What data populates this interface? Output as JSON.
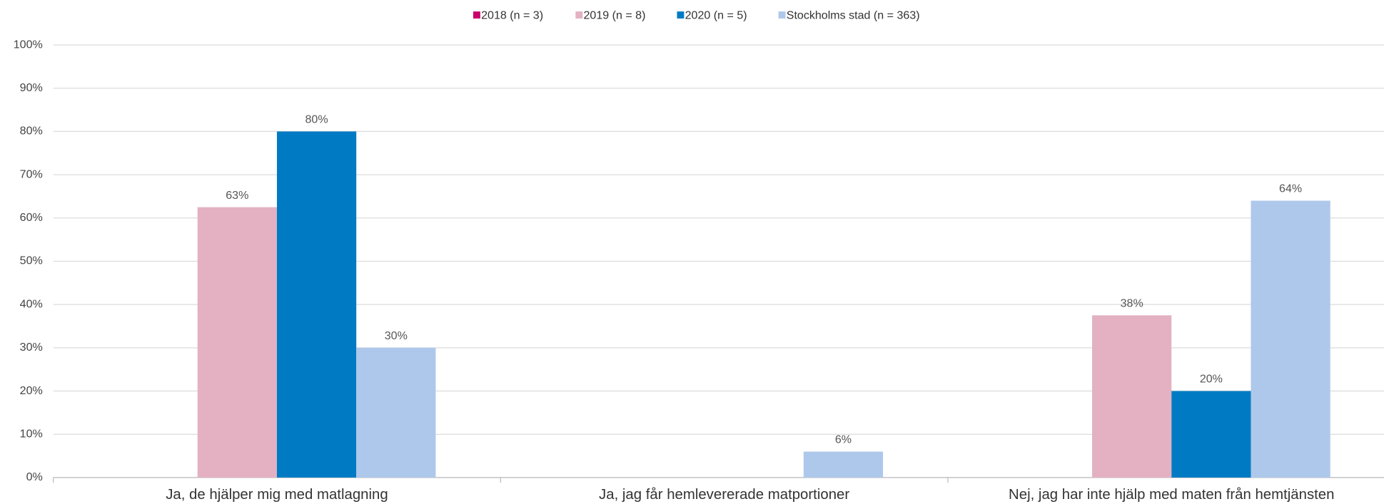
{
  "chart_data": {
    "type": "bar",
    "categories": [
      "Ja, de hjälper mig med matlagning",
      "Ja, jag får hemlevererade matportioner",
      "Nej, jag har inte hjälp med maten från hemtjänsten"
    ],
    "series": [
      {
        "name": "2018 (n = 3)",
        "color": "#c8006e",
        "values": [
          null,
          null,
          null
        ]
      },
      {
        "name": "2019 (n = 8)",
        "color": "#e3b1c2",
        "values": [
          62.5,
          null,
          37.5
        ],
        "value_labels": [
          "63%",
          null,
          "38%"
        ]
      },
      {
        "name": "2020 (n = 5)",
        "color": "#007bc3",
        "values": [
          80,
          null,
          20
        ],
        "value_labels": [
          "80%",
          null,
          "20%"
        ]
      },
      {
        "name": "Stockholms stad (n = 363)",
        "color": "#aec8eb",
        "values": [
          30,
          6,
          64
        ],
        "value_labels": [
          "30%",
          "6%",
          "64%"
        ]
      }
    ],
    "ylim": [
      0,
      100
    ],
    "yticks": [
      {
        "value": 0,
        "label": "0%"
      },
      {
        "value": 10,
        "label": "10%"
      },
      {
        "value": 20,
        "label": "20%"
      },
      {
        "value": 30,
        "label": "30%"
      },
      {
        "value": 40,
        "label": "40%"
      },
      {
        "value": 50,
        "label": "50%"
      },
      {
        "value": 60,
        "label": "60%"
      },
      {
        "value": 70,
        "label": "70%"
      },
      {
        "value": 80,
        "label": "80%"
      },
      {
        "value": 90,
        "label": "90%"
      },
      {
        "value": 100,
        "label": "100%"
      }
    ],
    "grid": true,
    "legend": "top"
  }
}
